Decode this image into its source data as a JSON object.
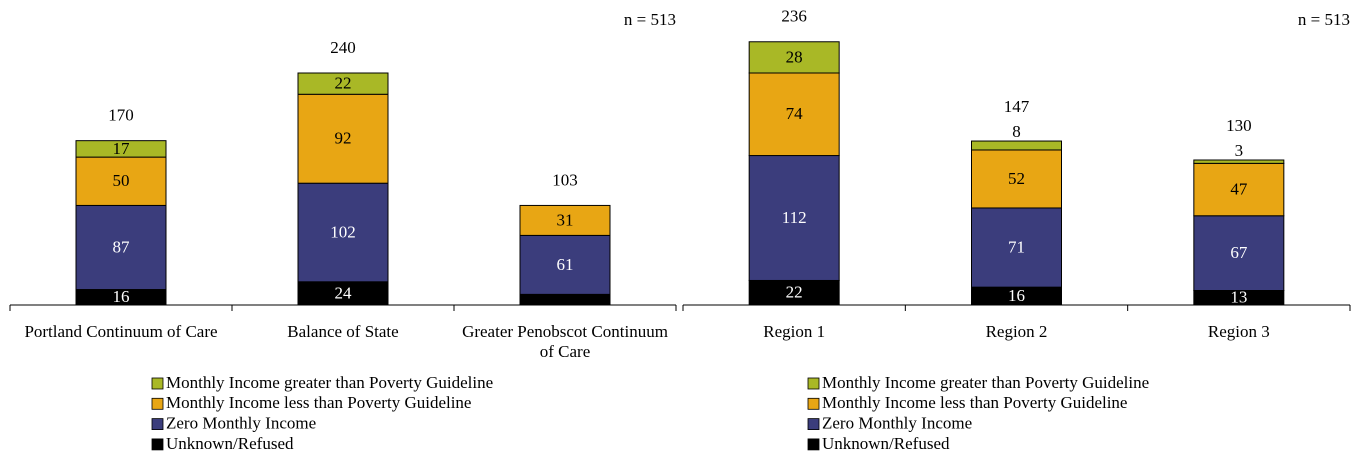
{
  "chart_data": [
    {
      "type": "stacked_bar",
      "annotation": "n = 513",
      "categories": [
        "Portland Continuum of Care",
        "Balance of State",
        "Greater Penobscot Continuum of Care"
      ],
      "totals": [
        170,
        240,
        103
      ],
      "series": [
        {
          "name": "Unknown/Refused",
          "color": "#000000",
          "values": [
            16,
            24,
            11
          ]
        },
        {
          "name": "Zero Monthly Income",
          "color": "#3b3d7c",
          "values": [
            87,
            102,
            61
          ]
        },
        {
          "name": "Monthly Income less than Poverty Guideline",
          "color": "#e8a614",
          "values": [
            50,
            92,
            31
          ]
        },
        {
          "name": "Monthly Income greater than Poverty Guideline",
          "color": "#a9b826",
          "values": [
            17,
            22,
            0
          ]
        }
      ],
      "ylim": [
        0,
        300
      ]
    },
    {
      "type": "stacked_bar",
      "annotation": "n = 513",
      "categories": [
        "Region 1",
        "Region 2",
        "Region 3"
      ],
      "totals": [
        236,
        147,
        130
      ],
      "series": [
        {
          "name": "Unknown/Refused",
          "color": "#000000",
          "values": [
            22,
            16,
            13
          ]
        },
        {
          "name": "Zero Monthly Income",
          "color": "#3b3d7c",
          "values": [
            112,
            71,
            67
          ]
        },
        {
          "name": "Monthly Income less than Poverty Guideline",
          "color": "#e8a614",
          "values": [
            74,
            52,
            47
          ]
        },
        {
          "name": "Monthly Income greater than Poverty Guideline",
          "color": "#a9b826",
          "values": [
            28,
            8,
            3
          ]
        }
      ],
      "ylim": [
        0,
        260
      ]
    }
  ]
}
